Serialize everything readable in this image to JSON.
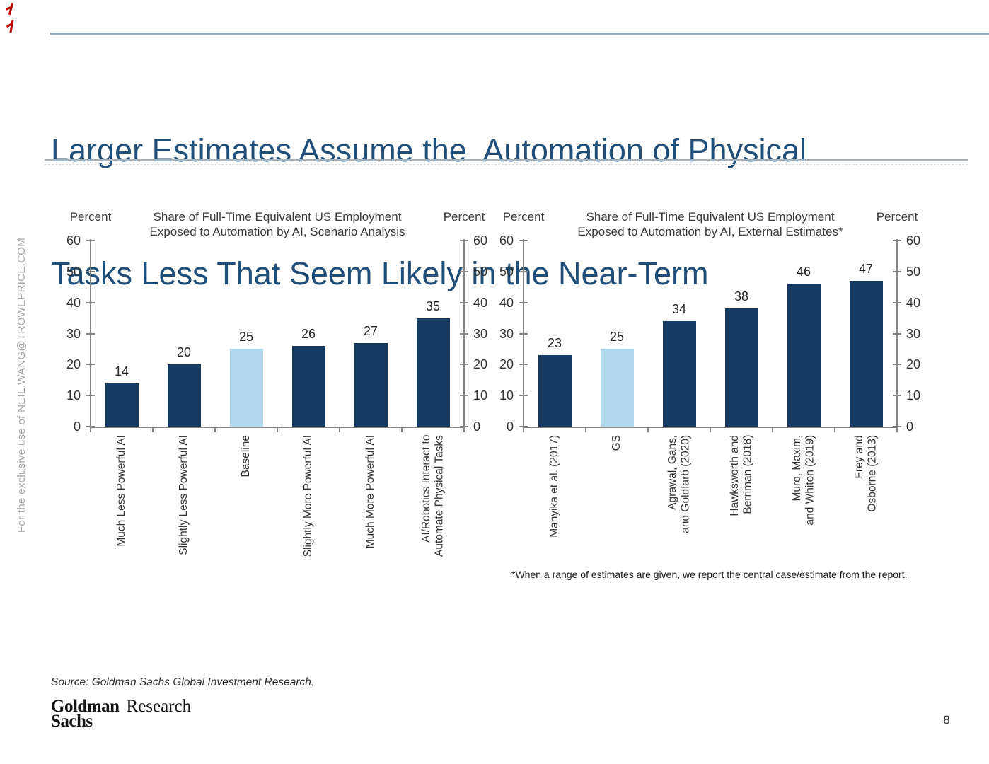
{
  "header": {
    "title_line1": "Larger Estimates Assume the  Automation of Physical",
    "title_line2": "Tasks Less That Seem Likely in the Near-Term"
  },
  "sidebar": {
    "watermark": "For the exclusive use of NEIL.WANG@TROWEPRICE.COM"
  },
  "colors": {
    "bar_dark": "#163A5F",
    "bar_light": "#B3D7EC",
    "title_blue": "#1F4E79",
    "rule_blue": "#8EA9C4",
    "axis_gray": "#858585",
    "annotation_red": "#C00000"
  },
  "chart_data": [
    {
      "type": "bar",
      "title": "Share of Full-Time Equivalent US Employment Exposed to Automation by AI, Scenario Analysis",
      "title_lines": [
        "Share of Full-Time Equivalent US Employment",
        "Exposed to Automation by AI, Scenario Analysis"
      ],
      "axis_label_left": "Percent",
      "axis_label_right": "Percent",
      "ylim": [
        0,
        60
      ],
      "ytick_step": 10,
      "grid": false,
      "categories": [
        "Much Less Powerful AI",
        "Slightly Less Powerful AI",
        "Baseline",
        "Slightly More Powerful AI",
        "Much More Powerful AI",
        "AI/Robotics Interact to\nAutomate Physical Tasks"
      ],
      "values": [
        14,
        20,
        25,
        26,
        27,
        35
      ],
      "highlight_index": 2
    },
    {
      "type": "bar",
      "title": "Share of Full-Time Equivalent US Employment Exposed to Automation by AI, External Estimates*",
      "title_lines": [
        "Share of Full-Time Equivalent US Employment",
        "Exposed to Automation by AI, External Estimates*"
      ],
      "axis_label_left": "Percent",
      "axis_label_right": "Percent",
      "ylim": [
        0,
        60
      ],
      "ytick_step": 10,
      "grid": false,
      "categories": [
        "Manyika et al. (2017)",
        "GS",
        "Agrawal, Gans,\nand Goldfarb (2020)",
        "Hawksworth and\nBerriman (2018)",
        "Muro, Maxim,\nand Whiton (2019)",
        "Frey and\nOsborne (2013)"
      ],
      "values": [
        23,
        25,
        34,
        38,
        46,
        47
      ],
      "highlight_index": 1,
      "footnote": "*When a range of estimates are given, we report the central case/estimate  from the report."
    }
  ],
  "footer": {
    "source": "Source: Goldman Sachs Global Investment Research.",
    "logo_line1": "Goldman",
    "logo_line2": "Sachs",
    "logo_suffix": "Research",
    "page_number": "8"
  }
}
